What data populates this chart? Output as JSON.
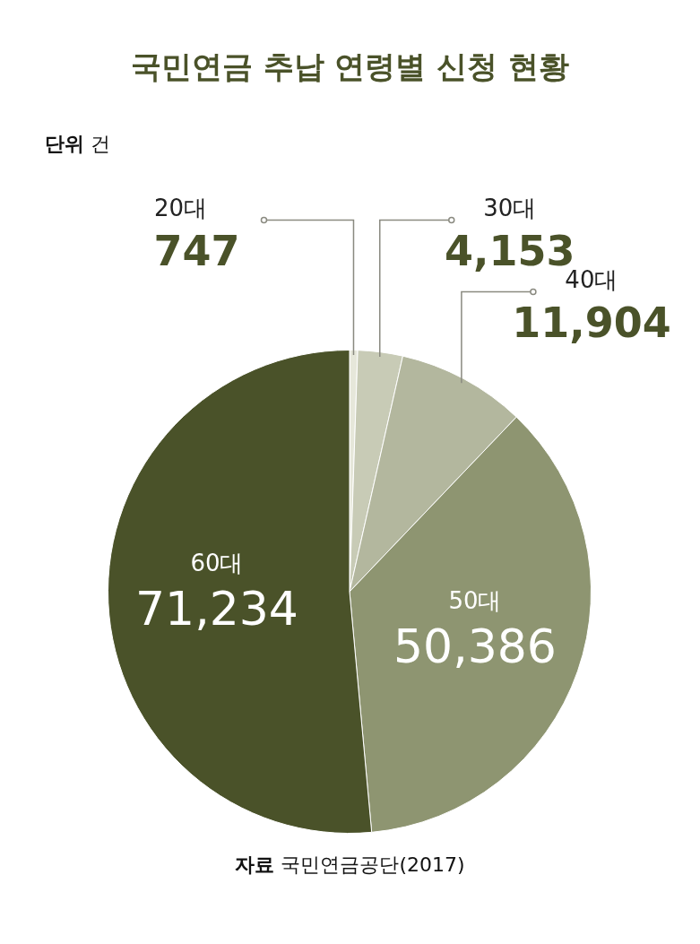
{
  "chart_data": {
    "type": "pie",
    "title": "국민연금 추납 연령별 신청 현황",
    "categories": [
      "20대",
      "30대",
      "40대",
      "50대",
      "60대"
    ],
    "values": [
      747,
      4153,
      11904,
      50386,
      71234
    ],
    "colors": [
      "#e6e7da",
      "#c8cbb6",
      "#b3b79e",
      "#8e9571",
      "#4a5229"
    ],
    "value_labels": [
      "747",
      "4,153",
      "11,904",
      "50,386",
      "71,234"
    ],
    "legend": false,
    "annotations": [
      "단위 건",
      "자료 국민연금공단(2017)"
    ]
  }
}
